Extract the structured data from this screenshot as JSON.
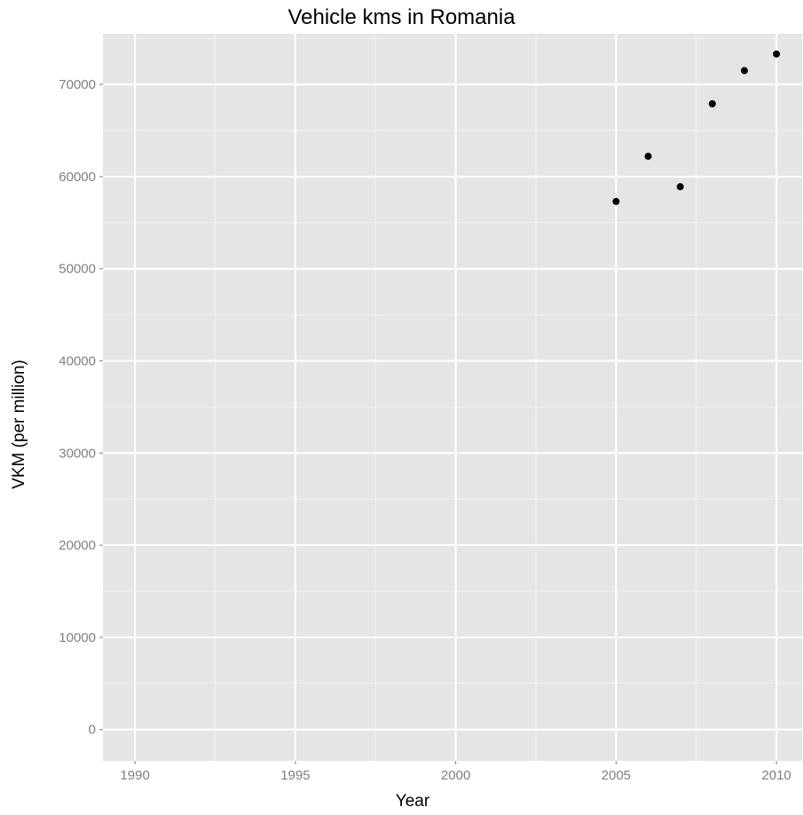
{
  "chart_data": {
    "type": "scatter",
    "title": "Vehicle kms in Romania",
    "xlabel": "Year",
    "ylabel": "VKM (per million)",
    "xlim": [
      1989,
      2010.8
    ],
    "ylim": [
      -3400,
      75500
    ],
    "x_ticks": [
      1990,
      1995,
      2000,
      2005,
      2010
    ],
    "x_tick_labels": [
      "1990",
      "1995",
      "2000",
      "2005",
      "2010"
    ],
    "y_ticks": [
      0,
      10000,
      20000,
      30000,
      40000,
      50000,
      60000,
      70000
    ],
    "y_tick_labels": [
      "0",
      "10000",
      "20000",
      "30000",
      "40000",
      "50000",
      "60000",
      "70000"
    ],
    "grid": true,
    "panel_color": "#e5e5e5",
    "point_color": "#000000",
    "points": [
      {
        "x": 2005,
        "y": 57300
      },
      {
        "x": 2006,
        "y": 62200
      },
      {
        "x": 2007,
        "y": 58900
      },
      {
        "x": 2008,
        "y": 67900
      },
      {
        "x": 2009,
        "y": 71500
      },
      {
        "x": 2010,
        "y": 73300
      }
    ]
  }
}
